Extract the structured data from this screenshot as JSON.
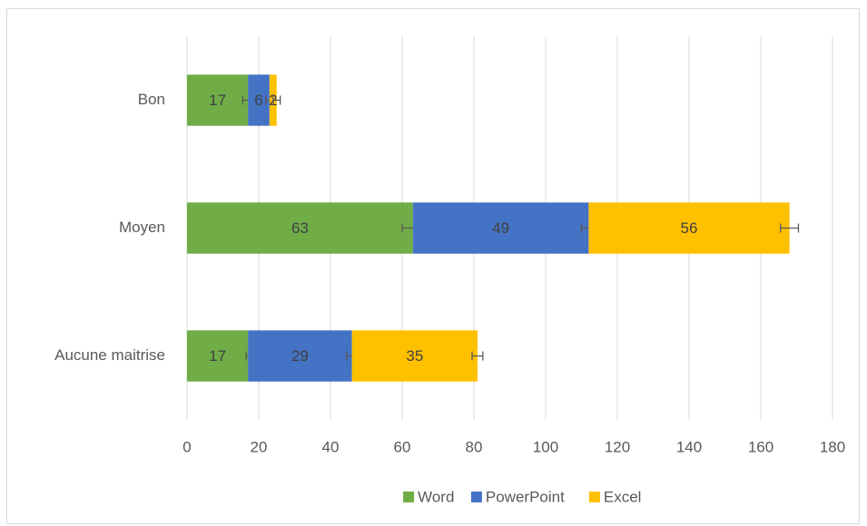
{
  "chart_data": {
    "type": "stacked-bar-horizontal",
    "categories": [
      "Bon",
      "Moyen",
      "Aucune maitrise"
    ],
    "series": [
      {
        "name": "Word",
        "color": "#70ad47",
        "values": [
          17,
          63,
          17
        ],
        "errors": [
          1.5,
          3,
          0.5
        ]
      },
      {
        "name": "PowerPoint",
        "color": "#4472c4",
        "values": [
          6,
          49,
          29
        ],
        "errors": [
          1,
          2,
          1.5
        ]
      },
      {
        "name": "Excel",
        "color": "#ffc000",
        "values": [
          2,
          56,
          35
        ],
        "errors": [
          1,
          2.5,
          1.5
        ]
      }
    ],
    "xlim": [
      0,
      180
    ],
    "xticks": [
      0,
      20,
      40,
      60,
      80,
      100,
      120,
      140,
      160,
      180
    ],
    "grid": true,
    "legend": "bottom"
  }
}
